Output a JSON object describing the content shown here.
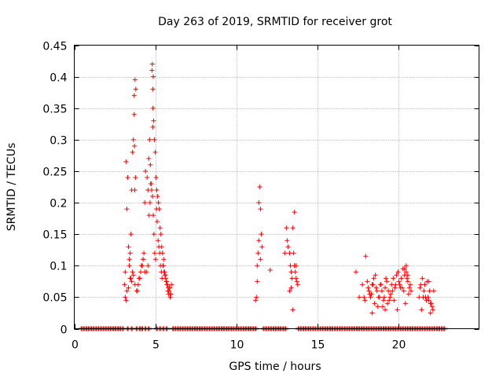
{
  "chart_data": {
    "type": "scatter",
    "title": "Day 263 of 2019, SRMTID for receiver grot",
    "xlabel": "GPS time / hours",
    "ylabel": "SRMTID / TECUs",
    "xlim": [
      0,
      25
    ],
    "ylim": [
      0,
      0.45
    ],
    "x_ticks": [
      0,
      5,
      10,
      15,
      20
    ],
    "x_tick_labels": [
      "0",
      "5",
      "10",
      "15",
      "20"
    ],
    "y_ticks": [
      0,
      0.05,
      0.1,
      0.15,
      0.2,
      0.25,
      0.3,
      0.35,
      0.4,
      0.45
    ],
    "y_tick_labels": [
      "0",
      "0.05",
      "0.1",
      "0.15",
      "0.2",
      "0.25",
      "0.3",
      "0.35",
      "0.4",
      "0.45"
    ],
    "grid": true,
    "marker": "+",
    "series": [
      {
        "name": "SRMTID",
        "color": "#ff0000",
        "x": [
          3.1,
          3.15,
          3.2,
          3.25,
          3.2,
          3.3,
          3.4,
          3.5,
          3.6,
          3.65,
          3.7,
          3.75,
          3.8,
          3.7,
          3.6,
          3.55,
          3.5,
          3.45,
          3.4,
          3.35,
          3.9,
          4.0,
          4.1,
          4.2,
          4.25,
          4.3,
          4.35,
          4.4,
          4.5,
          4.55,
          4.6,
          4.65,
          4.7,
          4.75,
          4.8,
          4.82,
          4.85,
          4.9,
          4.95,
          5.0,
          5.05,
          5.1,
          5.15,
          5.2,
          5.25,
          5.3,
          5.35,
          5.4,
          5.45,
          5.5,
          5.55,
          5.6,
          5.65,
          5.7,
          5.75,
          5.8,
          5.85,
          5.9,
          5.95,
          6.0,
          3.15,
          3.25,
          3.35,
          3.45,
          3.55,
          3.65,
          3.75,
          3.85,
          3.95,
          4.05,
          4.15,
          4.25,
          4.35,
          4.45,
          4.55,
          4.62,
          4.68,
          4.72,
          4.78,
          4.83,
          4.88,
          4.92,
          4.97,
          5.02,
          5.08,
          5.12,
          5.18,
          5.22,
          5.28,
          5.32,
          5.38,
          5.42,
          5.48,
          5.52,
          5.58,
          5.62,
          5.68,
          5.72,
          5.78,
          5.82,
          5.88,
          5.92,
          5.97,
          3.72,
          3.78,
          3.74,
          4.85,
          4.86,
          4.88,
          11.2,
          11.3,
          11.35,
          11.4,
          11.45,
          11.5,
          11.55,
          11.6,
          11.4,
          11.5,
          11.3,
          11.25,
          12.1,
          13.0,
          13.1,
          13.15,
          13.2,
          13.3,
          13.35,
          13.4,
          13.45,
          13.5,
          13.55,
          13.6,
          13.65,
          13.7,
          13.75,
          13.8,
          13.4,
          13.6,
          13.5,
          13.3,
          13.7,
          17.4,
          17.6,
          17.8,
          17.9,
          18.0,
          18.1,
          18.2,
          18.3,
          18.4,
          18.5,
          18.6,
          18.7,
          18.8,
          18.9,
          19.0,
          19.1,
          19.2,
          19.3,
          19.4,
          19.5,
          19.6,
          19.7,
          19.8,
          19.9,
          20.0,
          20.1,
          20.2,
          20.3,
          20.4,
          20.5,
          20.6,
          20.7,
          20.8,
          21.3,
          21.4,
          21.5,
          21.6,
          21.7,
          21.8,
          21.9,
          22.0,
          22.1,
          22.2,
          17.95,
          18.15,
          18.35,
          18.55,
          18.75,
          18.95,
          19.15,
          19.35,
          19.55,
          19.75,
          19.95,
          20.15,
          20.35,
          20.55,
          20.75,
          21.35,
          21.55,
          21.75,
          21.95,
          22.15,
          18.25,
          18.45,
          18.65,
          18.85,
          19.05,
          19.25,
          19.45,
          19.65,
          19.85,
          20.05,
          20.25,
          20.45,
          20.65,
          21.45,
          21.65,
          21.85,
          22.05,
          20.4,
          20.5,
          20.6,
          19.2,
          21.9,
          18.4,
          22.0
        ],
        "y": [
          0.07,
          0.09,
          0.045,
          0.19,
          0.265,
          0.24,
          0.11,
          0.08,
          0.09,
          0.3,
          0.37,
          0.395,
          0.38,
          0.34,
          0.28,
          0.22,
          0.15,
          0.12,
          0.1,
          0.13,
          0.06,
          0.08,
          0.09,
          0.1,
          0.11,
          0.12,
          0.2,
          0.25,
          0.24,
          0.22,
          0.27,
          0.3,
          0.26,
          0.23,
          0.41,
          0.42,
          0.38,
          0.33,
          0.3,
          0.28,
          0.24,
          0.22,
          0.21,
          0.2,
          0.19,
          0.16,
          0.15,
          0.13,
          0.12,
          0.1,
          0.09,
          0.085,
          0.08,
          0.075,
          0.07,
          0.065,
          0.06,
          0.065,
          0.055,
          0.07,
          0.05,
          0.06,
          0.065,
          0.08,
          0.075,
          0.085,
          0.07,
          0.06,
          0.07,
          0.08,
          0.1,
          0.11,
          0.09,
          0.09,
          0.1,
          0.18,
          0.2,
          0.23,
          0.22,
          0.21,
          0.18,
          0.15,
          0.12,
          0.11,
          0.19,
          0.17,
          0.14,
          0.13,
          0.12,
          0.1,
          0.09,
          0.08,
          0.1,
          0.11,
          0.09,
          0.085,
          0.075,
          0.07,
          0.06,
          0.055,
          0.065,
          0.05,
          0.055,
          0.29,
          0.24,
          0.22,
          0.32,
          0.35,
          0.4,
          0.045,
          0.075,
          0.12,
          0.2,
          0.225,
          0.19,
          0.15,
          0.13,
          0.14,
          0.11,
          0.1,
          0.05,
          0.093,
          0.12,
          0.16,
          0.14,
          0.13,
          0.12,
          0.1,
          0.09,
          0.08,
          0.16,
          0.12,
          0.1,
          0.09,
          0.08,
          0.075,
          0.07,
          0.065,
          0.185,
          0.03,
          0.06,
          0.1,
          0.09,
          0.05,
          0.07,
          0.05,
          0.115,
          0.075,
          0.06,
          0.05,
          0.07,
          0.08,
          0.085,
          0.06,
          0.05,
          0.07,
          0.06,
          0.045,
          0.065,
          0.075,
          0.06,
          0.05,
          0.07,
          0.08,
          0.065,
          0.085,
          0.09,
          0.07,
          0.08,
          0.095,
          0.085,
          0.1,
          0.075,
          0.065,
          0.06,
          0.05,
          0.07,
          0.08,
          0.06,
          0.05,
          0.075,
          0.045,
          0.04,
          0.035,
          0.06,
          0.045,
          0.065,
          0.055,
          0.04,
          0.035,
          0.07,
          0.05,
          0.04,
          0.055,
          0.045,
          0.03,
          0.065,
          0.06,
          0.08,
          0.07,
          0.065,
          0.05,
          0.045,
          0.06,
          0.03,
          0.055,
          0.07,
          0.065,
          0.05,
          0.035,
          0.08,
          0.045,
          0.06,
          0.07,
          0.075,
          0.065,
          0.04,
          0.055,
          0.03,
          0.07,
          0.05,
          0.04,
          0.095,
          0.09,
          0.085,
          0.03,
          0.075,
          0.025,
          0.025
        ],
        "zero_x": [
          0.45,
          0.6,
          0.75,
          0.9,
          1.05,
          1.2,
          1.35,
          1.5,
          1.65,
          1.8,
          1.95,
          2.1,
          2.25,
          2.4,
          2.55,
          2.7,
          2.85,
          3.0,
          3.3,
          3.55,
          3.85,
          4.05,
          4.2,
          4.4,
          4.6,
          5.1,
          5.3,
          5.5,
          5.7,
          6.1,
          6.25,
          6.4,
          6.55,
          6.7,
          6.85,
          7.0,
          7.15,
          7.3,
          7.45,
          7.6,
          7.75,
          7.9,
          8.05,
          8.2,
          8.35,
          8.5,
          8.65,
          8.8,
          8.95,
          9.1,
          9.25,
          9.4,
          9.55,
          9.7,
          9.85,
          10.0,
          10.15,
          10.3,
          10.45,
          10.6,
          10.75,
          10.9,
          11.05,
          11.2,
          11.7,
          11.85,
          12.0,
          12.15,
          12.3,
          12.45,
          12.6,
          12.75,
          12.9,
          13.05,
          13.85,
          14.0,
          14.15,
          14.3,
          14.45,
          14.6,
          14.75,
          14.9,
          15.05,
          15.2,
          15.35,
          15.5,
          15.65,
          15.8,
          15.95,
          16.1,
          16.25,
          16.4,
          16.55,
          16.7,
          16.85,
          17.0,
          17.15,
          17.3,
          17.45,
          17.6,
          17.75,
          17.9,
          18.05,
          18.2,
          18.35,
          18.5,
          18.65,
          18.8,
          18.95,
          19.1,
          19.25,
          19.4,
          19.55,
          19.7,
          19.85,
          20.0,
          20.15,
          20.3,
          20.45,
          20.6,
          20.75,
          20.9,
          21.05,
          21.2,
          21.35,
          21.5,
          21.65,
          21.8,
          21.95,
          22.1,
          22.25,
          22.4,
          22.55,
          22.7,
          22.85
        ]
      }
    ]
  }
}
